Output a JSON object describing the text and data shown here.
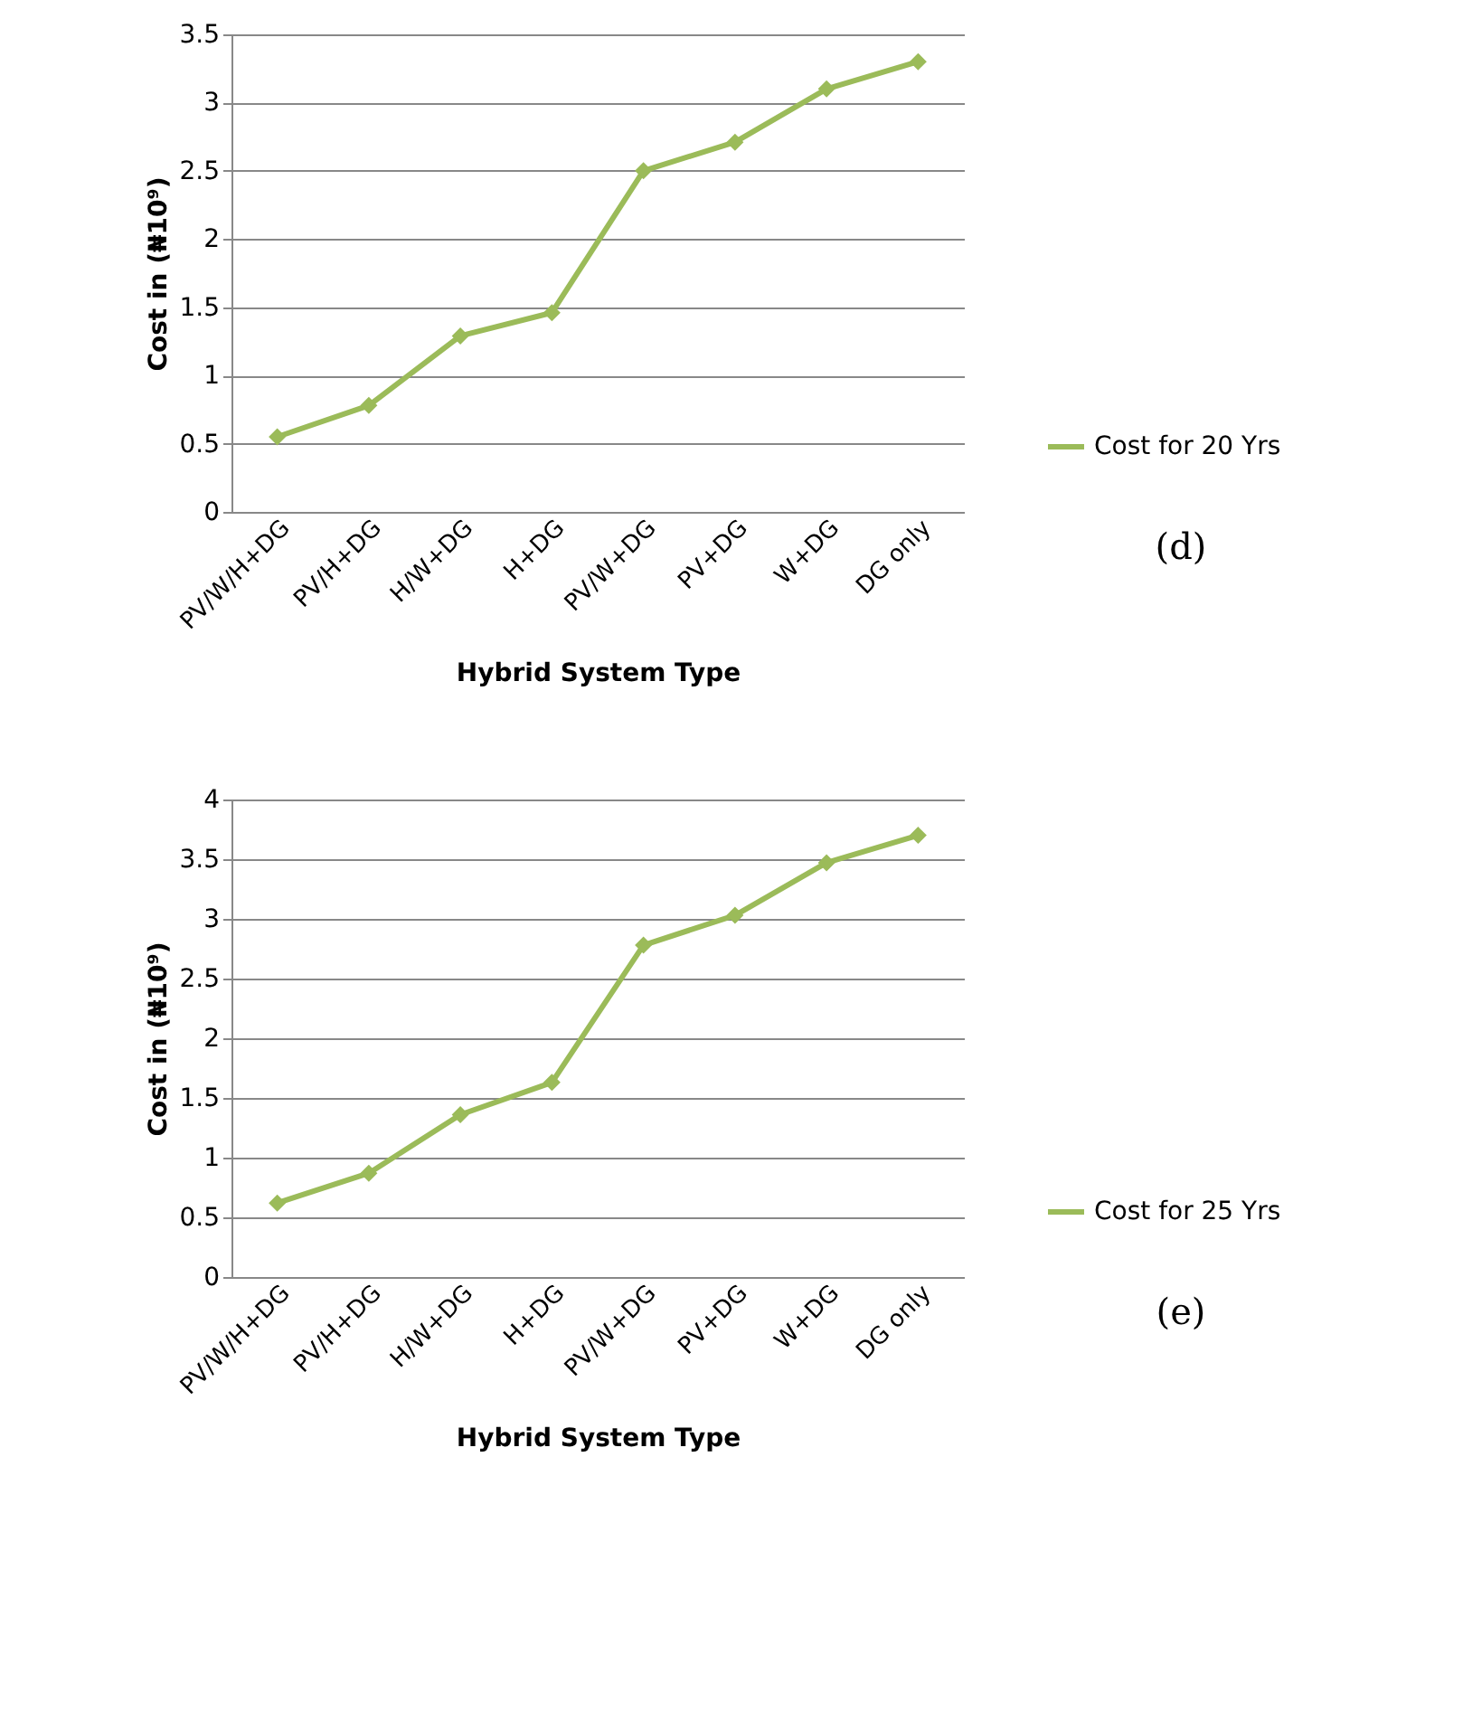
{
  "chart_data": [
    {
      "type": "line",
      "xlabel": "Hybrid System Type",
      "ylabel": "Cost in (₦10⁹)",
      "categories": [
        "PV/W/H+DG",
        "PV/H+DG",
        "H/W+DG",
        "H+DG",
        "PV/W+DG",
        "PV+DG",
        "W+DG",
        "DG only"
      ],
      "series": [
        {
          "name": "Cost for 20 Yrs",
          "color": "#9bbb59",
          "values": [
            0.55,
            0.78,
            1.29,
            1.46,
            2.5,
            2.71,
            3.1,
            3.3
          ]
        }
      ],
      "ylim": [
        0,
        3.5
      ],
      "yticks": [
        0,
        0.5,
        1,
        1.5,
        2,
        2.5,
        3,
        3.5
      ],
      "grid": "y",
      "legend": "right",
      "marker": "diamond",
      "line_style": "solid",
      "annotations": [
        "(d)"
      ]
    },
    {
      "type": "line",
      "xlabel": "Hybrid System Type",
      "ylabel": "Cost in (₦10⁹)",
      "categories": [
        "PV/W/H+DG",
        "PV/H+DG",
        "H/W+DG",
        "H+DG",
        "PV/W+DG",
        "PV+DG",
        "W+DG",
        "DG only"
      ],
      "series": [
        {
          "name": "Cost for 25 Yrs",
          "color": "#9bbb59",
          "values": [
            0.62,
            0.87,
            1.36,
            1.63,
            2.78,
            3.03,
            3.47,
            3.7
          ]
        }
      ],
      "ylim": [
        0,
        4
      ],
      "yticks": [
        0,
        0.5,
        1,
        1.5,
        2,
        2.5,
        3,
        3.5,
        4
      ],
      "grid": "y",
      "legend": "right",
      "marker": "diamond",
      "line_style": "solid",
      "annotations": [
        "(e)"
      ]
    }
  ]
}
